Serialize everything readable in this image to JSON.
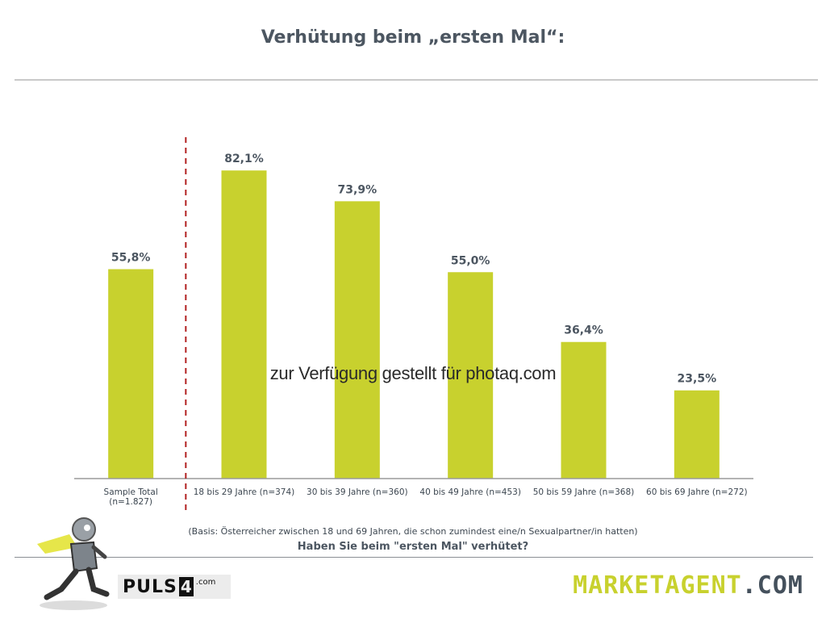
{
  "title": "Verhütung beim „ersten Mal“:",
  "watermark": "zur Verfügung gestellt für photaq.com",
  "basis": "(Basis: Österreicher zwischen 18 und 69 Jahren, die schon zumindest eine/n Sexualpartner/in hatten)",
  "question": "Haben Sie beim \"ersten Mal\" verhütet?",
  "logos": {
    "puls4_text": "PULS",
    "puls4_four": "4",
    "puls4_com": ".com",
    "marketagent_main": "MARKETAGENT",
    "marketagent_com": ".COM"
  },
  "colors": {
    "bar": "#c8d12e",
    "divider": "#b22222",
    "label": "#4c5661"
  },
  "chart_data": {
    "type": "bar",
    "categories": [
      [
        "Sample Total",
        "(n=1.827)"
      ],
      [
        "18 bis 29 Jahre (n=374)"
      ],
      [
        "30 bis 39 Jahre (n=360)"
      ],
      [
        "40 bis 49 Jahre (n=453)"
      ],
      [
        "50 bis 59 Jahre (n=368)"
      ],
      [
        "60 bis 69 Jahre (n=272)"
      ]
    ],
    "values": [
      55.8,
      82.1,
      73.9,
      55.0,
      36.4,
      23.5
    ],
    "value_labels": [
      "55,8%",
      "82,1%",
      "73,9%",
      "55,0%",
      "36,4%",
      "23,5%"
    ],
    "ylim": [
      0,
      100
    ],
    "grid": false,
    "legend": "none",
    "divider_after_category": 0
  }
}
